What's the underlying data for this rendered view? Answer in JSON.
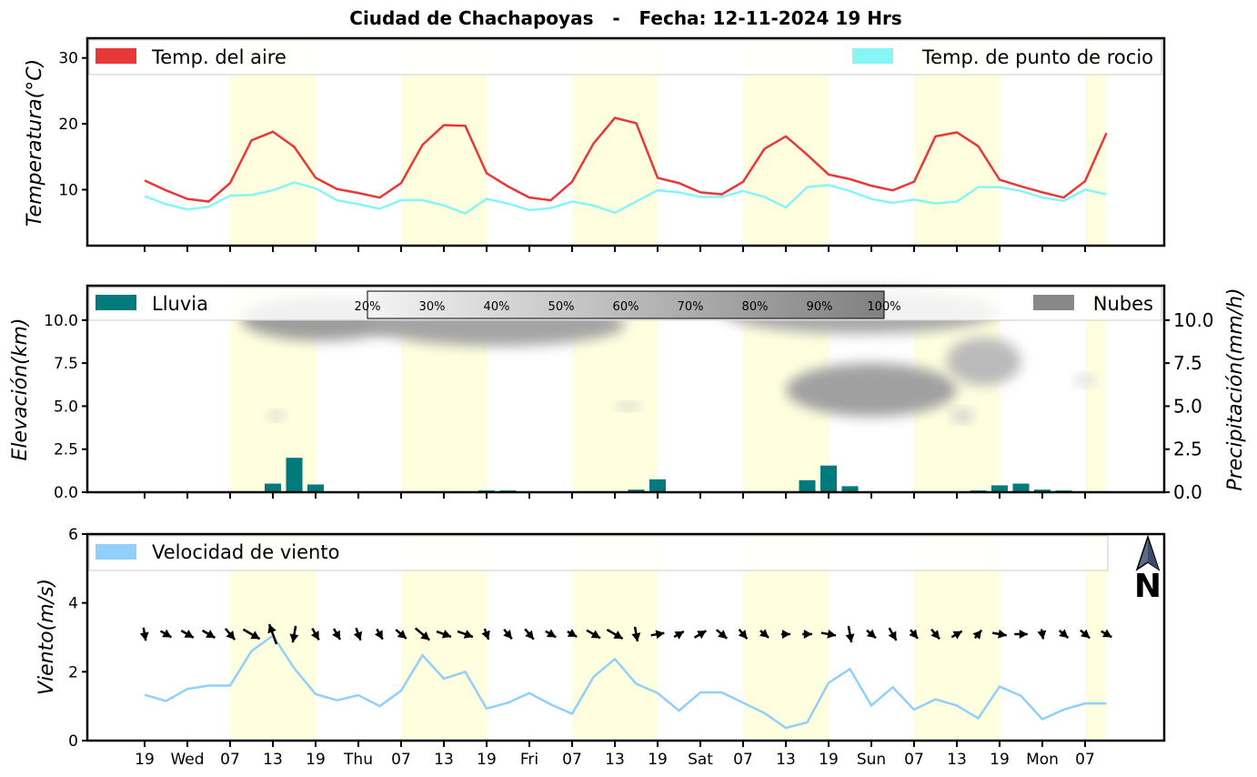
{
  "title": "Ciudad de Chachapoyas   -   Fecha: 12-11-2024 19 Hrs",
  "x_tick_labels": [
    "19",
    "Wed",
    "07",
    "13",
    "19",
    "Thu",
    "07",
    "13",
    "19",
    "Fri",
    "07",
    "13",
    "19",
    "Sat",
    "07",
    "13",
    "19",
    "Sun",
    "07",
    "13",
    "19",
    "Mon",
    "07"
  ],
  "colors": {
    "temp_air": "#e83838",
    "dew_point": "#87f5f5",
    "rain": "#007a7a",
    "clouds": "#888888",
    "wind": "#90d0fa",
    "daylight": "#ffffe0"
  },
  "icons": {
    "north_arrow": "north-arrow-icon"
  },
  "panels": {
    "temperature": {
      "ylabel": "Temperatura(°C)",
      "legend_air": "Temp. del aire",
      "legend_dew": "Temp. de punto de rocio"
    },
    "rain_clouds": {
      "ylabel_left": "Elevación(km)",
      "ylabel_right": "Precipitación(mm/h)",
      "legend_rain": "Lluvia",
      "legend_clouds": "Nubes"
    },
    "wind": {
      "ylabel": "Viento(m/s)",
      "legend_wind": "Velocidad de viento",
      "north_label": "N"
    }
  },
  "chart_data": [
    {
      "type": "line",
      "panel": "temperature",
      "x_unit": "step (3 h) from 12-11 19 Hrs",
      "x": [
        0,
        1,
        2,
        3,
        4,
        5,
        6,
        7,
        8,
        9,
        10,
        11,
        12,
        13,
        14,
        15,
        16,
        17,
        18,
        19,
        20,
        21,
        22,
        23,
        24,
        25,
        26,
        27,
        28,
        29,
        30,
        31,
        32,
        33,
        34,
        35,
        36,
        37,
        38,
        39,
        40,
        41,
        42,
        43,
        44,
        45
      ],
      "ylim": [
        1.5,
        33
      ],
      "yticks": [
        10,
        20,
        30
      ],
      "series": [
        {
          "name": "Temp. del aire",
          "values": [
            11.4,
            9.9,
            8.6,
            8.2,
            11.0,
            17.5,
            18.8,
            16.5,
            11.8,
            10.1,
            9.5,
            8.8,
            11.0,
            16.8,
            19.8,
            19.7,
            12.5,
            10.5,
            8.8,
            8.4,
            11.2,
            17.0,
            20.9,
            20.1,
            11.8,
            11.0,
            9.6,
            9.3,
            11.2,
            16.2,
            18.1,
            15.3,
            12.3,
            11.6,
            10.6,
            9.9,
            11.2,
            18.1,
            18.7,
            16.6,
            11.5,
            10.5,
            9.6,
            8.8,
            11.3,
            18.6
          ]
        },
        {
          "name": "Temp. de punto de rocio",
          "values": [
            9.0,
            7.8,
            7.0,
            7.4,
            9.1,
            9.2,
            9.9,
            11.1,
            10.2,
            8.4,
            7.8,
            7.1,
            8.4,
            8.4,
            7.6,
            6.4,
            8.6,
            7.9,
            6.9,
            7.2,
            8.2,
            7.6,
            6.5,
            8.2,
            9.9,
            9.6,
            8.9,
            8.9,
            9.8,
            8.9,
            7.3,
            10.4,
            10.7,
            9.8,
            8.6,
            8.0,
            8.5,
            7.9,
            8.2,
            10.4,
            10.4,
            9.8,
            8.8,
            8.3,
            10.0,
            9.3
          ]
        }
      ]
    },
    {
      "type": "bar",
      "panel": "rain_clouds",
      "ylim": [
        0,
        12
      ],
      "yticks_left": [
        0.0,
        2.5,
        5.0,
        7.5,
        10.0
      ],
      "yticks_right": [
        0.0,
        2.5,
        5.0,
        7.5,
        10.0
      ],
      "rain": {
        "name": "Lluvia",
        "x": [
          6,
          7,
          8,
          14,
          15,
          16,
          17,
          23,
          24,
          26,
          31,
          32,
          33,
          39,
          40,
          41,
          42,
          43
        ],
        "values": [
          0.5,
          2.0,
          0.45,
          0.03,
          0.03,
          0.1,
          0.1,
          0.15,
          0.75,
          0.03,
          0.7,
          1.55,
          0.35,
          0.1,
          0.4,
          0.5,
          0.15,
          0.1
        ]
      },
      "cloud_colorbar": [
        "20%",
        "30%",
        "40%",
        "50%",
        "60%",
        "70%",
        "80%",
        "90%",
        "100%"
      ],
      "clouds": [
        {
          "x": [
            4.5,
            12
          ],
          "elev_km": [
            8.8,
            11.4
          ],
          "pct": 80
        },
        {
          "x": [
            10.5,
            22.5
          ],
          "elev_km": [
            8.5,
            11.0
          ],
          "pct": 75
        },
        {
          "x": [
            27,
            40
          ],
          "elev_km": [
            9.2,
            11.8
          ],
          "pct": 72
        },
        {
          "x": [
            30,
            38
          ],
          "elev_km": [
            4.4,
            7.5
          ],
          "pct": 78
        },
        {
          "x": [
            37.5,
            41
          ],
          "elev_km": [
            6.2,
            9.0
          ],
          "pct": 60
        },
        {
          "x": [
            5.7,
            6.6
          ],
          "elev_km": [
            4.2,
            4.7
          ],
          "pct": 45
        },
        {
          "x": [
            22,
            23.2
          ],
          "elev_km": [
            4.8,
            5.2
          ],
          "pct": 50
        },
        {
          "x": [
            37.7,
            38.8
          ],
          "elev_km": [
            4.1,
            4.8
          ],
          "pct": 50
        },
        {
          "x": [
            43.5,
            44.5
          ],
          "elev_km": [
            6.2,
            6.8
          ],
          "pct": 40
        }
      ]
    },
    {
      "type": "line",
      "panel": "wind",
      "ylim": [
        0,
        6
      ],
      "yticks": [
        0,
        2,
        4,
        6
      ],
      "series": [
        {
          "name": "Velocidad de viento",
          "values": [
            1.33,
            1.15,
            1.5,
            1.6,
            1.6,
            2.6,
            3.05,
            2.1,
            1.35,
            1.17,
            1.32,
            1.0,
            1.45,
            2.48,
            1.8,
            2.0,
            0.93,
            1.1,
            1.38,
            1.05,
            0.78,
            1.85,
            2.37,
            1.65,
            1.38,
            0.87,
            1.4,
            1.4,
            1.1,
            0.8,
            0.37,
            0.53,
            1.68,
            2.08,
            1.02,
            1.55,
            0.9,
            1.2,
            1.02,
            0.65,
            1.57,
            1.3,
            0.62,
            0.9,
            1.08,
            1.08
          ]
        }
      ],
      "wind_direction_deg": [
        170,
        120,
        120,
        120,
        140,
        120,
        340,
        190,
        150,
        150,
        160,
        150,
        130,
        130,
        110,
        110,
        160,
        140,
        140,
        120,
        120,
        120,
        120,
        170,
        80,
        60,
        60,
        130,
        140,
        130,
        90,
        90,
        100,
        170,
        130,
        150,
        140,
        140,
        60,
        40,
        100,
        90,
        170,
        130,
        130,
        120
      ]
    }
  ]
}
